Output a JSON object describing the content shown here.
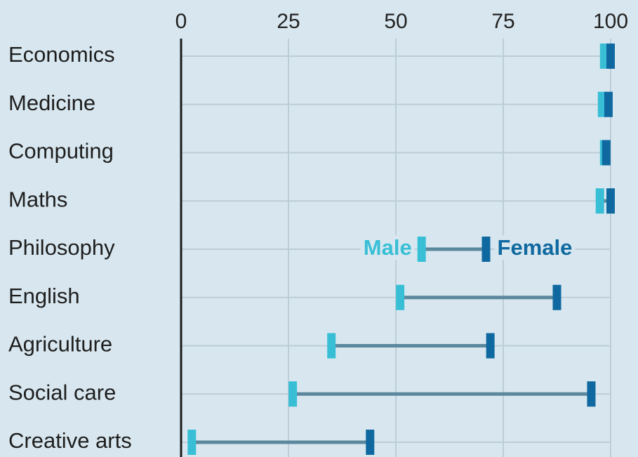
{
  "chart_data": {
    "type": "dumbbell",
    "categories": [
      "Economics",
      "Medicine",
      "Computing",
      "Maths",
      "Philosophy",
      "English",
      "Agriculture",
      "Social care",
      "Creative arts"
    ],
    "series": [
      {
        "name": "Male",
        "color": "#38bfd6",
        "values": [
          98.5,
          98,
          98.5,
          97.5,
          56,
          51,
          35,
          26,
          2.5
        ]
      },
      {
        "name": "Female",
        "color": "#0f69a0",
        "values": [
          100,
          99.5,
          99,
          100,
          71,
          87.5,
          72,
          95.5,
          44
        ]
      }
    ],
    "xlim": [
      0,
      100
    ],
    "xticks": [
      0,
      25,
      50,
      75,
      100
    ],
    "grid": true
  }
}
